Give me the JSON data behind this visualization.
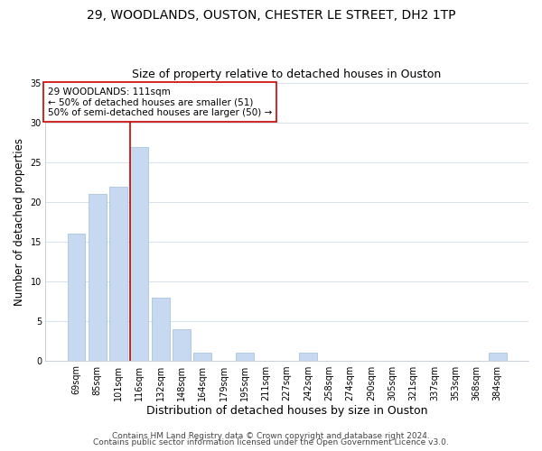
{
  "title": "29, WOODLANDS, OUSTON, CHESTER LE STREET, DH2 1TP",
  "subtitle": "Size of property relative to detached houses in Ouston",
  "xlabel": "Distribution of detached houses by size in Ouston",
  "ylabel": "Number of detached properties",
  "bar_labels": [
    "69sqm",
    "85sqm",
    "101sqm",
    "116sqm",
    "132sqm",
    "148sqm",
    "164sqm",
    "179sqm",
    "195sqm",
    "211sqm",
    "227sqm",
    "242sqm",
    "258sqm",
    "274sqm",
    "290sqm",
    "305sqm",
    "321sqm",
    "337sqm",
    "353sqm",
    "368sqm",
    "384sqm"
  ],
  "bar_values": [
    16,
    21,
    22,
    27,
    8,
    4,
    1,
    0,
    1,
    0,
    0,
    1,
    0,
    0,
    0,
    0,
    0,
    0,
    0,
    0,
    1
  ],
  "bar_color": "#c6d9f0",
  "bar_edge_color": "#aac4e0",
  "vline_x_idx": 3,
  "vline_color": "#cc0000",
  "annotation_text": "29 WOODLANDS: 111sqm\n← 50% of detached houses are smaller (51)\n50% of semi-detached houses are larger (50) →",
  "annotation_box_edge": "#cc0000",
  "annotation_box_face": "#ffffff",
  "ylim": [
    0,
    35
  ],
  "yticks": [
    0,
    5,
    10,
    15,
    20,
    25,
    30,
    35
  ],
  "footer_line1": "Contains HM Land Registry data © Crown copyright and database right 2024.",
  "footer_line2": "Contains public sector information licensed under the Open Government Licence v3.0.",
  "title_fontsize": 10,
  "subtitle_fontsize": 9,
  "xlabel_fontsize": 9,
  "ylabel_fontsize": 8.5,
  "tick_fontsize": 7,
  "footer_fontsize": 6.5,
  "annotation_fontsize": 7.5
}
